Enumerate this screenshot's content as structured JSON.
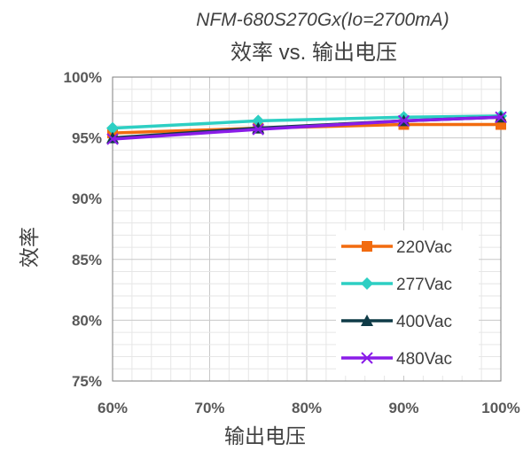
{
  "chart_data": {
    "type": "line",
    "title": "NFM-680S270Gx(Io=2700mA)",
    "subtitle": "效率 vs. 输出电压",
    "xlabel": "输出电压",
    "ylabel": "效率",
    "x": [
      60,
      75,
      90,
      100
    ],
    "xlim": [
      60,
      100
    ],
    "ylim": [
      75,
      100
    ],
    "x_ticks": [
      60,
      70,
      80,
      90,
      100
    ],
    "y_ticks": [
      75,
      80,
      85,
      90,
      95,
      100
    ],
    "x_tick_labels": [
      "60%",
      "70%",
      "80%",
      "90%",
      "100%"
    ],
    "y_tick_labels": [
      "75%",
      "80%",
      "85%",
      "90%",
      "95%",
      "100%"
    ],
    "grid": true,
    "legend_position": "bottom-right",
    "series": [
      {
        "name": "220Vac",
        "color": "#F26B0F",
        "marker": "square",
        "values": [
          95.4,
          95.8,
          96.1,
          96.1
        ]
      },
      {
        "name": "277Vac",
        "color": "#2DCFC3",
        "marker": "diamond",
        "values": [
          95.8,
          96.4,
          96.7,
          96.8
        ]
      },
      {
        "name": "400Vac",
        "color": "#0F3B47",
        "marker": "triangle",
        "values": [
          95.0,
          95.8,
          96.4,
          96.7
        ]
      },
      {
        "name": "480Vac",
        "color": "#8A1CE8",
        "marker": "x",
        "values": [
          94.9,
          95.7,
          96.4,
          96.7
        ]
      }
    ]
  }
}
